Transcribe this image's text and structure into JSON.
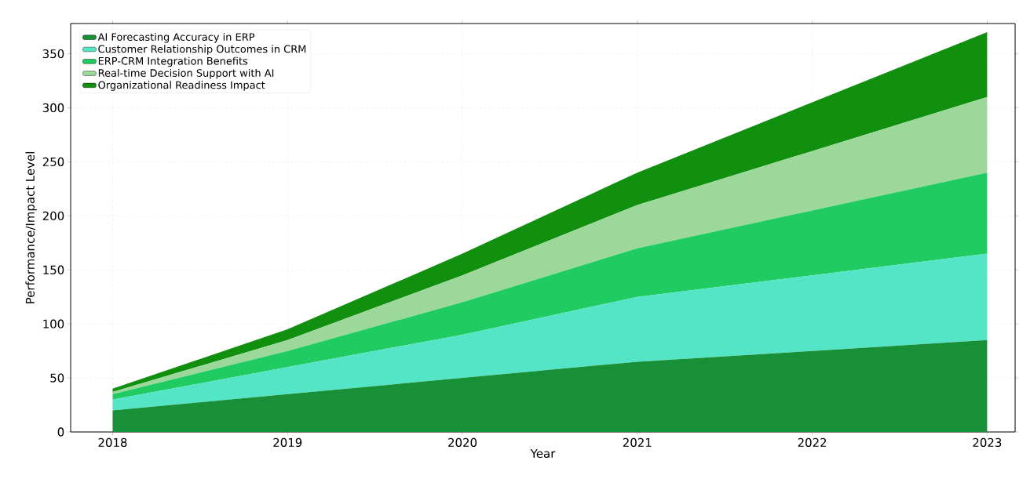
{
  "chart_data": {
    "type": "area",
    "stacked": true,
    "xlabel": "Year",
    "ylabel": "Performance/Impact Level",
    "x": [
      2018,
      2019,
      2020,
      2021,
      2022,
      2023
    ],
    "series": [
      {
        "name": "AI Forecasting Accuracy in ERP",
        "color": "#179038",
        "values": [
          20,
          35,
          50,
          65,
          75,
          85
        ]
      },
      {
        "name": "Customer Relationship Outcomes in CRM",
        "color": "#53e5c5",
        "values": [
          10,
          25,
          40,
          60,
          70,
          80
        ]
      },
      {
        "name": "ERP-CRM Integration Benefits",
        "color": "#20cc62",
        "values": [
          5,
          15,
          30,
          45,
          60,
          75
        ]
      },
      {
        "name": "Real-time Decision Support with AI",
        "color": "#9dd89b",
        "values": [
          2,
          10,
          25,
          40,
          55,
          70
        ]
      },
      {
        "name": "Organizational Readiness Impact",
        "color": "#11900f",
        "values": [
          3,
          10,
          20,
          30,
          45,
          60
        ]
      }
    ],
    "xlim": [
      2017.76,
      2023.16
    ],
    "ylim": [
      0,
      378
    ],
    "xticks": [
      2018,
      2019,
      2020,
      2021,
      2022,
      2023
    ],
    "yticks": [
      0,
      50,
      100,
      150,
      200,
      250,
      300,
      350
    ],
    "grid": true,
    "legend": "top left"
  }
}
